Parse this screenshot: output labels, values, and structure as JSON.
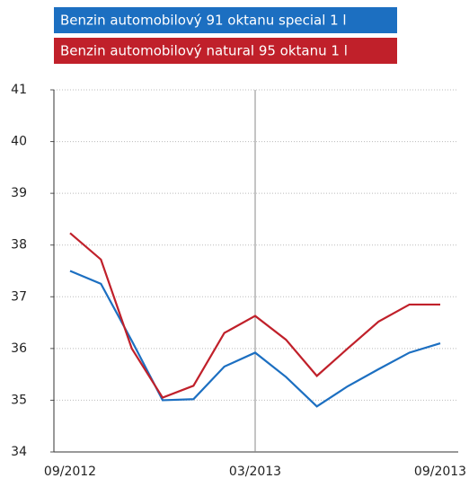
{
  "chart_data": {
    "type": "line",
    "categories": [
      "09/2012",
      null,
      null,
      null,
      null,
      null,
      "03/2013",
      null,
      null,
      null,
      null,
      null,
      "09/2013"
    ],
    "series": [
      {
        "name": "Benzin automobilový 91 oktanu special 1 l",
        "color": "#1c6fc1",
        "values": [
          37.5,
          37.25,
          36.15,
          35.0,
          35.02,
          35.65,
          35.92,
          35.45,
          34.88,
          35.27,
          35.6,
          35.92,
          36.1
        ]
      },
      {
        "name": "Benzin automobilový natural 95 oktanu 1 l",
        "color": "#c0202a",
        "values": [
          38.23,
          37.72,
          36.0,
          35.05,
          35.28,
          36.3,
          36.63,
          36.17,
          35.47,
          36.0,
          36.52,
          36.85,
          36.85
        ]
      }
    ],
    "ylim": [
      34,
      41
    ],
    "yticks": [
      34,
      35,
      36,
      37,
      38,
      39,
      40,
      41
    ],
    "grid": true,
    "vline": "03/2013"
  }
}
